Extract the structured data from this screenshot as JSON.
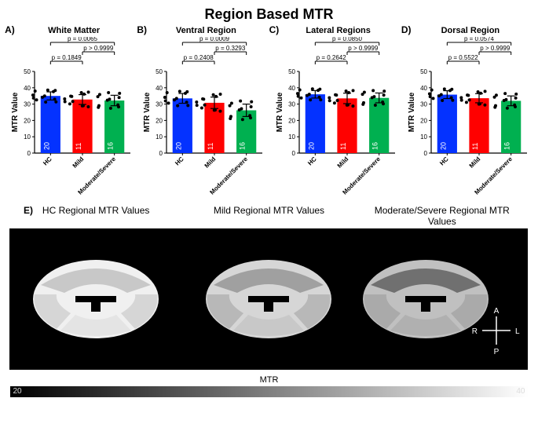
{
  "title": "Region Based MTR",
  "panels": [
    {
      "label": "A)",
      "title": "White Matter"
    },
    {
      "label": "B)",
      "title": "Ventral Region"
    },
    {
      "label": "C)",
      "title": "Lateral Regions"
    },
    {
      "label": "D)",
      "title": "Dorsal Region"
    }
  ],
  "chart_common": {
    "type": "bar",
    "ylabel": "MTR Value",
    "ylim": [
      0,
      50
    ],
    "yticks": [
      0,
      10,
      20,
      30,
      40,
      50
    ],
    "categories": [
      "HC",
      "Mild",
      "Moderate/Severe"
    ],
    "n_values": [
      "20",
      "11",
      "16"
    ],
    "bar_colors": [
      "#0432FF",
      "#FF0100",
      "#00B050"
    ],
    "bar_width": 0.62,
    "background_color": "#ffffff",
    "axis_color": "#000000",
    "error_color": "#000000",
    "scatter_color": "#000000",
    "scatter_size": 2,
    "label_fontsize": 10,
    "tick_fontsize": 8,
    "n_fontsize": 9,
    "n_color": "#ffffff"
  },
  "chart_data": [
    {
      "means": [
        35.0,
        32.8,
        32.2
      ],
      "errs": [
        2.5,
        3.0,
        3.2
      ],
      "p_outer": "p = 0.0065",
      "p_left": "p = 0.1849",
      "p_right": "p > 0.9999"
    },
    {
      "means": [
        33.5,
        30.8,
        26.2
      ],
      "errs": [
        3.0,
        3.5,
        3.8
      ],
      "p_outer": "p = 0.0009",
      "p_left": "p = 0.2408",
      "p_right": "p = 0.3293"
    },
    {
      "means": [
        36.0,
        33.5,
        33.8
      ],
      "errs": [
        2.3,
        3.2,
        3.0
      ],
      "p_outer": "p = 0.0850",
      "p_left": "p = 0.2642",
      "p_right": "p > 0.9999"
    },
    {
      "means": [
        35.8,
        33.6,
        32.0
      ],
      "errs": [
        2.4,
        2.8,
        3.0
      ],
      "p_outer": "p = 0.0574",
      "p_left": "p = 0.5522",
      "p_right": "p > 0.9999"
    }
  ],
  "panel_e": {
    "label": "E)",
    "titles": [
      "HC Regional MTR Values",
      "Mild Regional MTR Values",
      "Moderate/Severe Regional MTR Values"
    ],
    "compass": {
      "A": "A",
      "P": "P",
      "R": "R",
      "L": "L"
    },
    "background": "#000000",
    "shades": {
      "hc": {
        "dorsal": "#c8c8c8",
        "lateral": "#d6d6d6",
        "ventral": "#e4e4e4",
        "wm": "#f0f0f0"
      },
      "mild": {
        "dorsal": "#a0a0a0",
        "lateral": "#b8b8b8",
        "ventral": "#c8c8c8",
        "wm": "#d6d6d6"
      },
      "modsev": {
        "dorsal": "#707070",
        "lateral": "#aaaaaa",
        "ventral": "#b0b0b0",
        "wm": "#c0c0c0"
      }
    }
  },
  "gradient": {
    "label": "MTR",
    "min": "20",
    "max": "40",
    "from": "#000000",
    "to": "#ffffff"
  }
}
